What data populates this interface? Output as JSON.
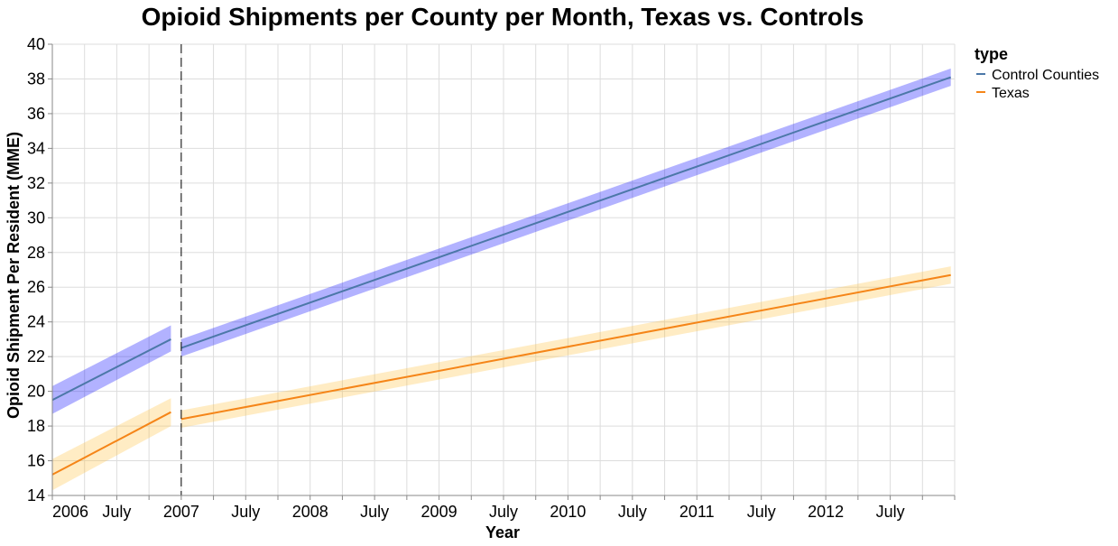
{
  "chart_data": {
    "type": "line",
    "title": "Opioid Shipments per County per Month, Texas vs. Controls",
    "xlabel": "Year",
    "ylabel": "Opioid Shipment Per Resident (MME)",
    "ylim": [
      14,
      40
    ],
    "y_ticks": [
      14,
      16,
      18,
      20,
      22,
      24,
      26,
      28,
      30,
      32,
      34,
      36,
      38,
      40
    ],
    "x_ticks": [
      {
        "label": "2006",
        "x": 2006.0
      },
      {
        "label": "July",
        "x": 2006.5
      },
      {
        "label": "2007",
        "x": 2007.0
      },
      {
        "label": "July",
        "x": 2007.5
      },
      {
        "label": "2008",
        "x": 2008.0
      },
      {
        "label": "July",
        "x": 2008.5
      },
      {
        "label": "2009",
        "x": 2009.0
      },
      {
        "label": "July",
        "x": 2009.5
      },
      {
        "label": "2010",
        "x": 2010.0
      },
      {
        "label": "July",
        "x": 2010.5
      },
      {
        "label": "2011",
        "x": 2011.0
      },
      {
        "label": "July",
        "x": 2011.5
      },
      {
        "label": "2012",
        "x": 2012.0
      },
      {
        "label": "July",
        "x": 2012.5
      }
    ],
    "xlim": [
      2006.0,
      2013.0
    ],
    "policy_line_x": 2007.0,
    "grid": true,
    "legend": {
      "title": "type",
      "position": "top-right"
    },
    "series": [
      {
        "name": "Control Counties",
        "color": "#4c78a8",
        "band_color": "#0000ff",
        "segments": [
          {
            "x": [
              2006.0,
              2006.92
            ],
            "y": [
              19.5,
              23.0
            ],
            "ci_low": [
              18.7,
              22.3
            ],
            "ci_high": [
              20.3,
              23.8
            ]
          },
          {
            "x": [
              2007.0,
              2012.97
            ],
            "y": [
              22.5,
              38.1
            ],
            "ci_low": [
              22.0,
              37.6
            ],
            "ci_high": [
              23.0,
              38.6
            ]
          }
        ]
      },
      {
        "name": "Texas",
        "color": "#f58518",
        "band_color": "#ffc13b",
        "segments": [
          {
            "x": [
              2006.0,
              2006.92
            ],
            "y": [
              15.2,
              18.8
            ],
            "ci_low": [
              14.3,
              18.0
            ],
            "ci_high": [
              16.1,
              19.6
            ]
          },
          {
            "x": [
              2007.0,
              2012.97
            ],
            "y": [
              18.4,
              26.7
            ],
            "ci_low": [
              17.9,
              26.2
            ],
            "ci_high": [
              18.9,
              27.2
            ]
          }
        ]
      }
    ]
  }
}
